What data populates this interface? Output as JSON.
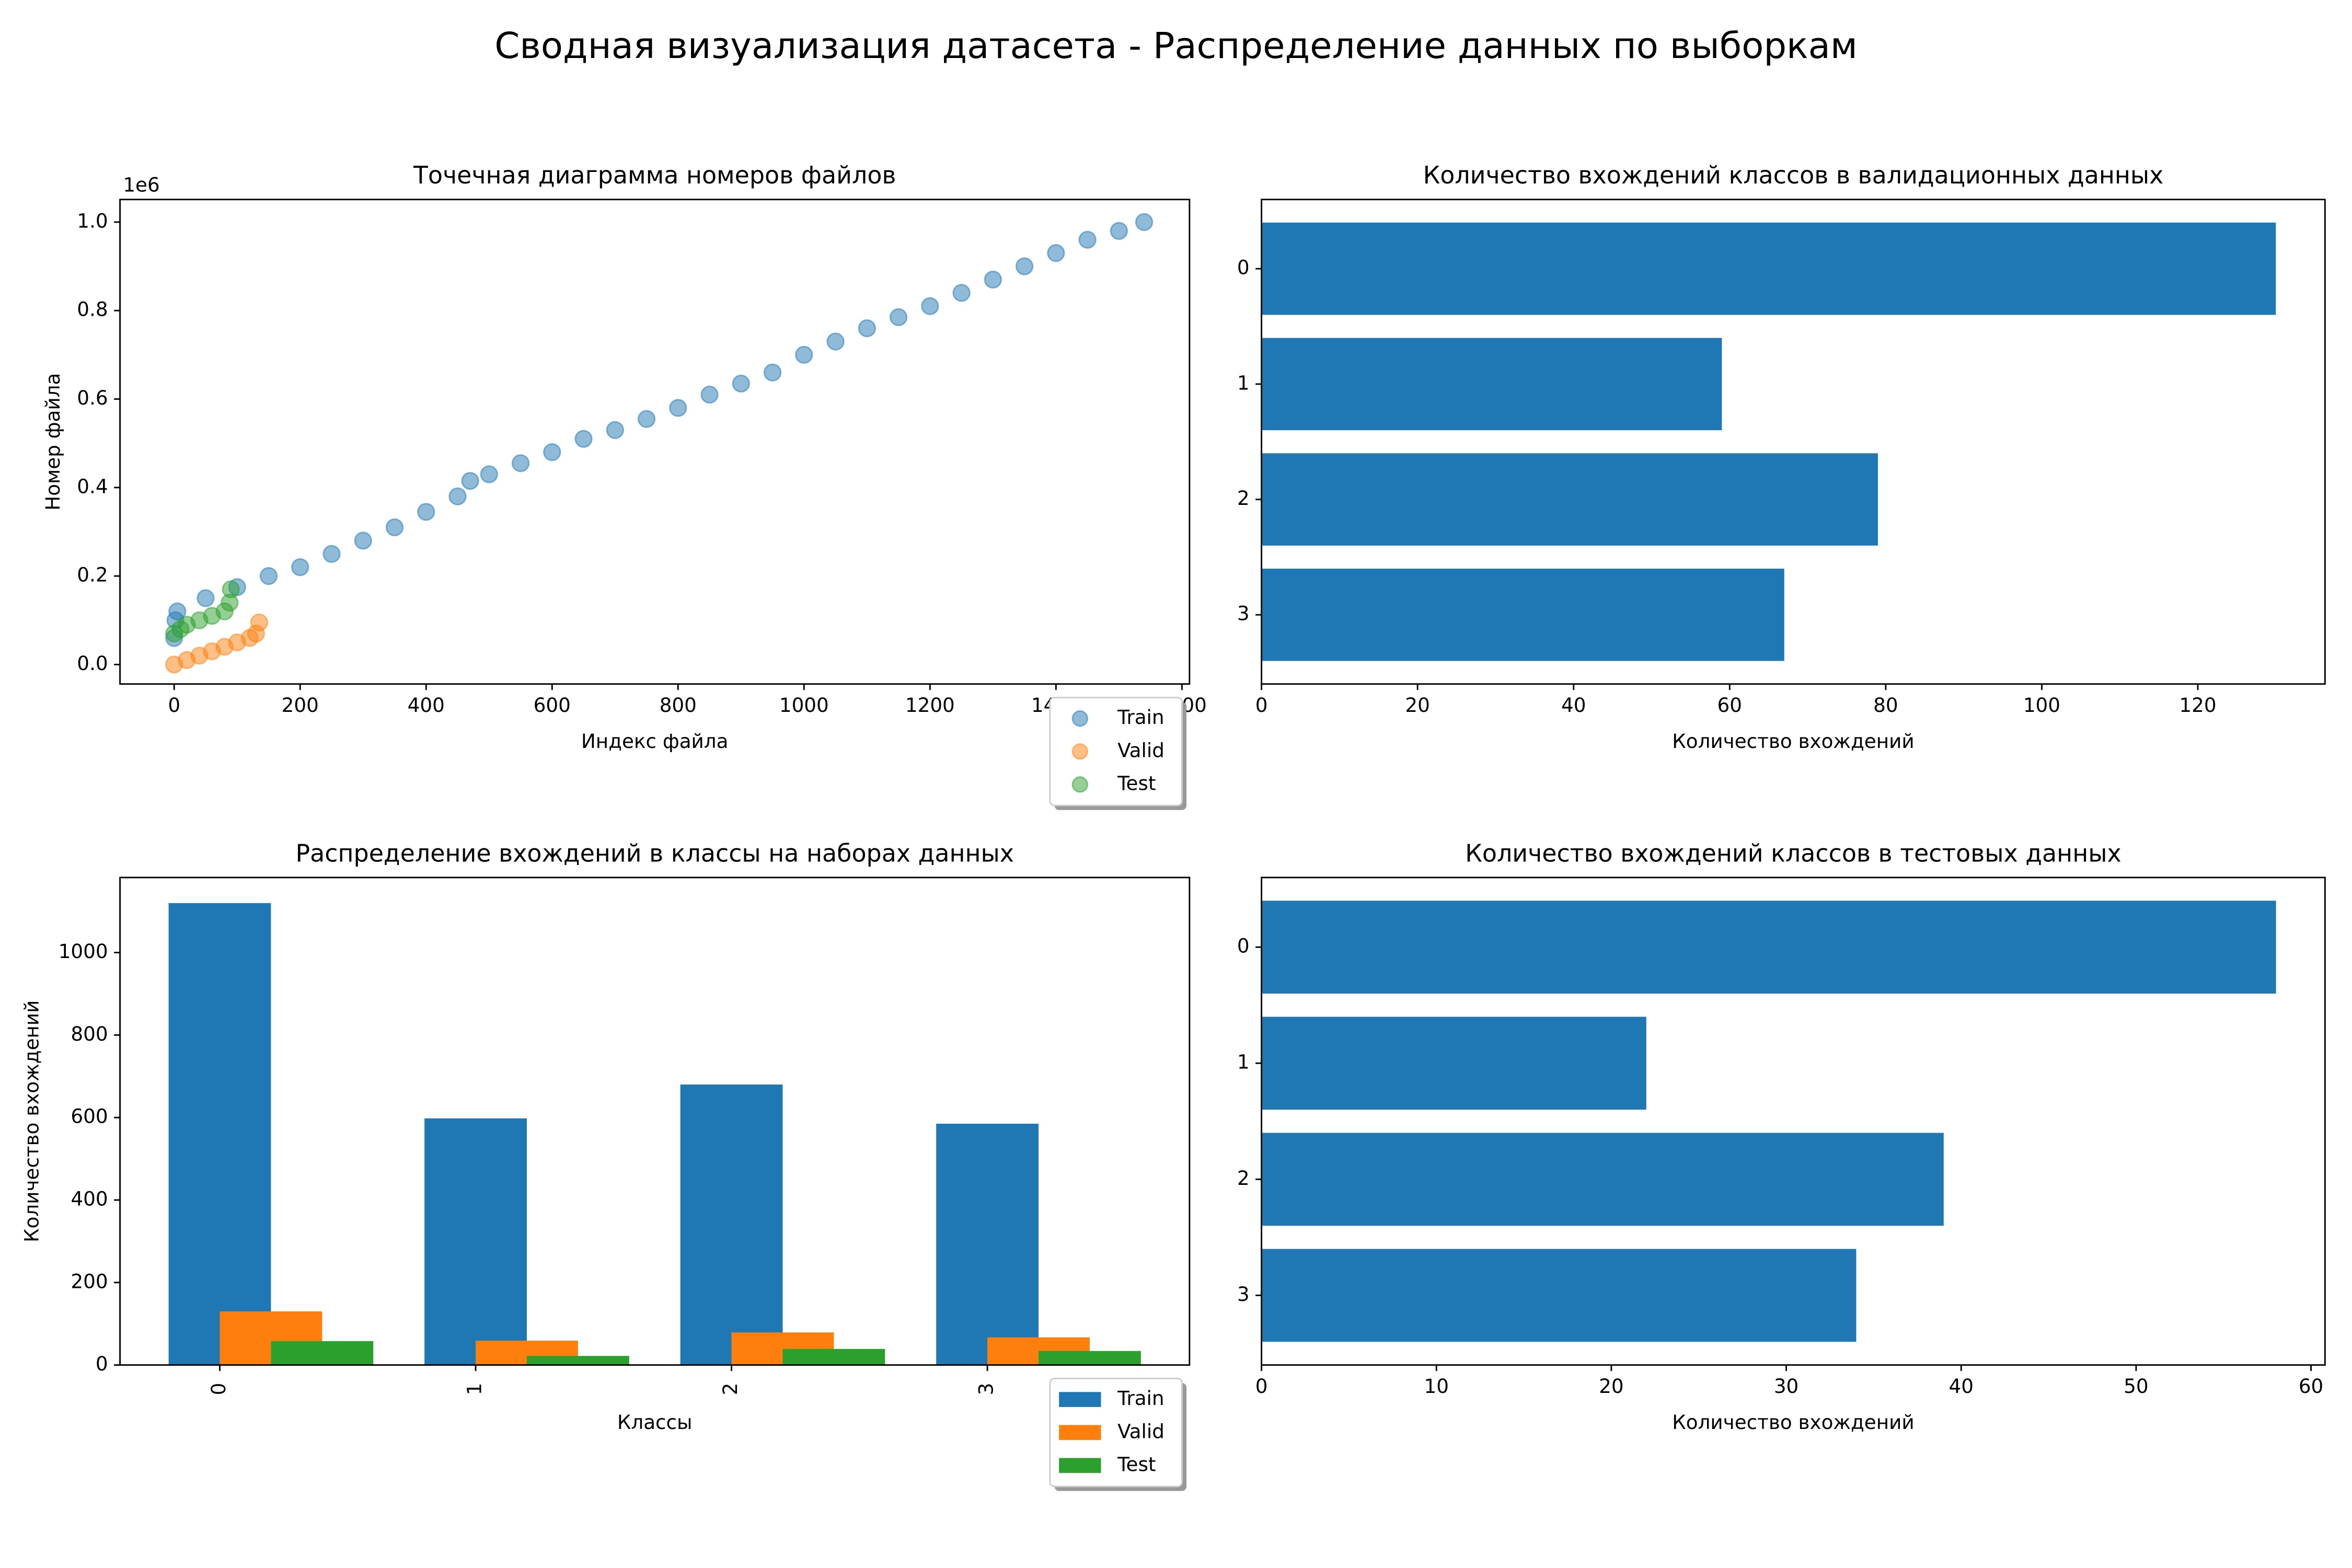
{
  "title": "Сводная визуализация датасета - Распределение данных по выборкам",
  "chart_data": [
    {
      "type": "scatter",
      "title": "Точечная диаграмма номеров файлов",
      "x_label": "Индекс файла",
      "y_label": "Номер файла",
      "y_offset_label": "1e6",
      "xlim": [
        -86,
        1612
      ],
      "xticks": [
        0,
        200,
        400,
        600,
        800,
        1000,
        1200,
        1400,
        1600
      ],
      "ylim": [
        -0.044,
        1.051
      ],
      "yticks": [
        {
          "value": 0,
          "label": "0.0"
        },
        0.2,
        0.4,
        0.6,
        0.8,
        {
          "value": 1,
          "label": "1.0"
        }
      ],
      "legend": "lower right",
      "series": [
        {
          "name": "Train",
          "color": "#1f77b4",
          "x": [
            0,
            2,
            5,
            50,
            100,
            150,
            200,
            250,
            300,
            350,
            400,
            450,
            470,
            500,
            550,
            600,
            650,
            700,
            750,
            800,
            850,
            900,
            950,
            1000,
            1050,
            1100,
            1150,
            1200,
            1250,
            1300,
            1350,
            1400,
            1450,
            1500,
            1540
          ],
          "y": [
            0.06,
            0.1,
            0.12,
            0.15,
            0.175,
            0.2,
            0.22,
            0.25,
            0.28,
            0.31,
            0.345,
            0.38,
            0.415,
            0.43,
            0.455,
            0.48,
            0.51,
            0.53,
            0.555,
            0.58,
            0.61,
            0.635,
            0.66,
            0.7,
            0.73,
            0.76,
            0.785,
            0.81,
            0.84,
            0.87,
            0.9,
            0.93,
            0.96,
            0.98,
            1.0
          ]
        },
        {
          "name": "Valid",
          "color": "#ff7f0e",
          "x": [
            0,
            20,
            40,
            60,
            80,
            100,
            120,
            130,
            135
          ],
          "y": [
            0.0,
            0.01,
            0.02,
            0.03,
            0.04,
            0.05,
            0.06,
            0.07,
            0.095
          ]
        },
        {
          "name": "Test",
          "color": "#2ca02c",
          "x": [
            0,
            10,
            20,
            40,
            60,
            80,
            88,
            90
          ],
          "y": [
            0.07,
            0.08,
            0.09,
            0.1,
            0.11,
            0.12,
            0.14,
            0.17
          ]
        }
      ]
    },
    {
      "type": "barh",
      "title": "Количество вхождений классов в валидационных данных",
      "x_label": "Количество вхождений",
      "categories": [
        "0",
        "1",
        "2",
        "3"
      ],
      "values": [
        130,
        59,
        79,
        67
      ],
      "color": "#1f77b4",
      "xlim": [
        0,
        136.3
      ],
      "xticks": [
        0,
        20,
        40,
        60,
        80,
        100,
        120
      ]
    },
    {
      "type": "bar",
      "title": "Распределение вхождений в классы на наборах данных",
      "x_label": "Классы",
      "y_label": "Количество вхождений",
      "categories": [
        "0",
        "1",
        "2",
        "3"
      ],
      "ylim": [
        0,
        1182
      ],
      "yticks": [
        0,
        200,
        400,
        600,
        800,
        1000
      ],
      "legend": "lower right",
      "series": [
        {
          "name": "Train",
          "color": "#1f77b4",
          "values": [
            1120,
            598,
            680,
            585
          ]
        },
        {
          "name": "Valid",
          "color": "#ff7f0e",
          "values": [
            130,
            59,
            79,
            67
          ]
        },
        {
          "name": "Test",
          "color": "#2ca02c",
          "values": [
            58,
            22,
            39,
            34
          ]
        }
      ]
    },
    {
      "type": "barh",
      "title": "Количество вхождений классов в тестовых данных",
      "x_label": "Количество вхождений",
      "categories": [
        "0",
        "1",
        "2",
        "3"
      ],
      "values": [
        58,
        22,
        39,
        34
      ],
      "color": "#1f77b4",
      "xlim": [
        0,
        60.8
      ],
      "xticks": [
        0,
        10,
        20,
        30,
        40,
        50,
        60
      ]
    }
  ]
}
